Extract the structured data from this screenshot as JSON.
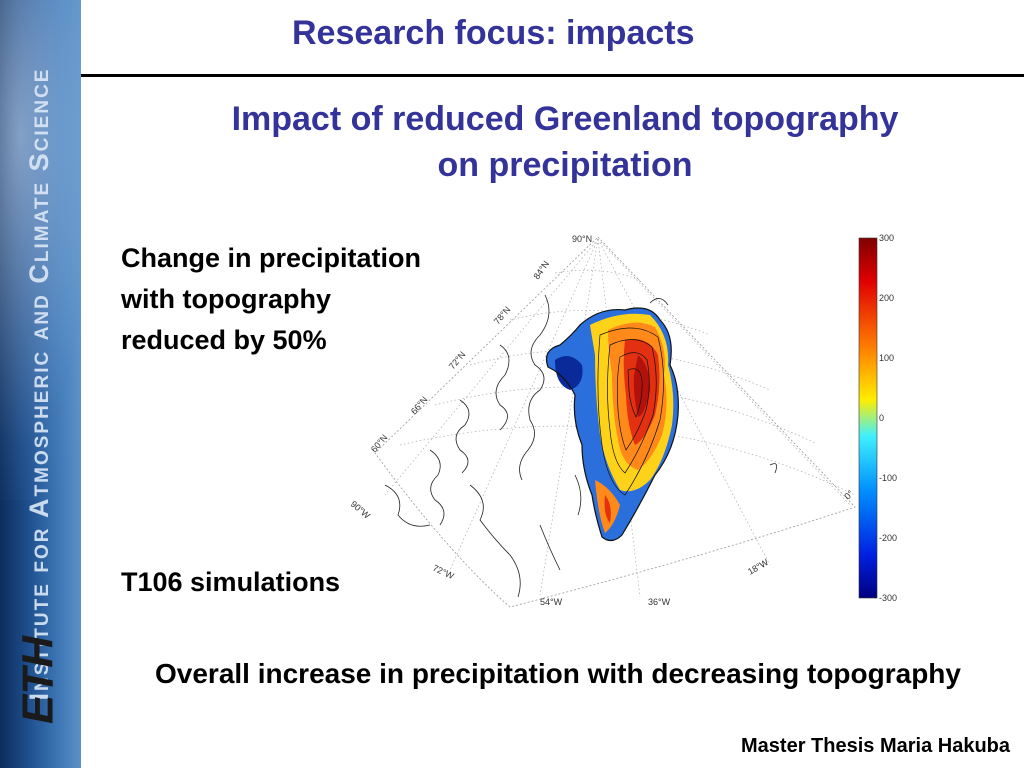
{
  "sidebar": {
    "institute_text": "Institute for Atmospheric and Climate Science",
    "logo_text": "ETH"
  },
  "header": {
    "title": "Research focus: impacts"
  },
  "subtitle": {
    "line1": "Impact of reduced Greenland topography",
    "line2": "on precipitation"
  },
  "description": {
    "line1": "Change in precipitation",
    "line2": "with topography",
    "line3": "reduced by 50%"
  },
  "simulation_label": "T106 simulations",
  "conclusion": "Overall increase in precipitation with decreasing topography",
  "footer": "Master Thesis Maria Hakuba",
  "map": {
    "latitude_labels": [
      "90°N",
      "84°N",
      "78°N",
      "72°N",
      "66°N",
      "60°N"
    ],
    "longitude_labels": [
      "90°W",
      "72°W",
      "54°W",
      "36°W",
      "18°W",
      "0°"
    ]
  },
  "colorbar": {
    "ticks": [
      "300",
      "200",
      "100",
      "0",
      "-100",
      "-200",
      "-300"
    ]
  }
}
